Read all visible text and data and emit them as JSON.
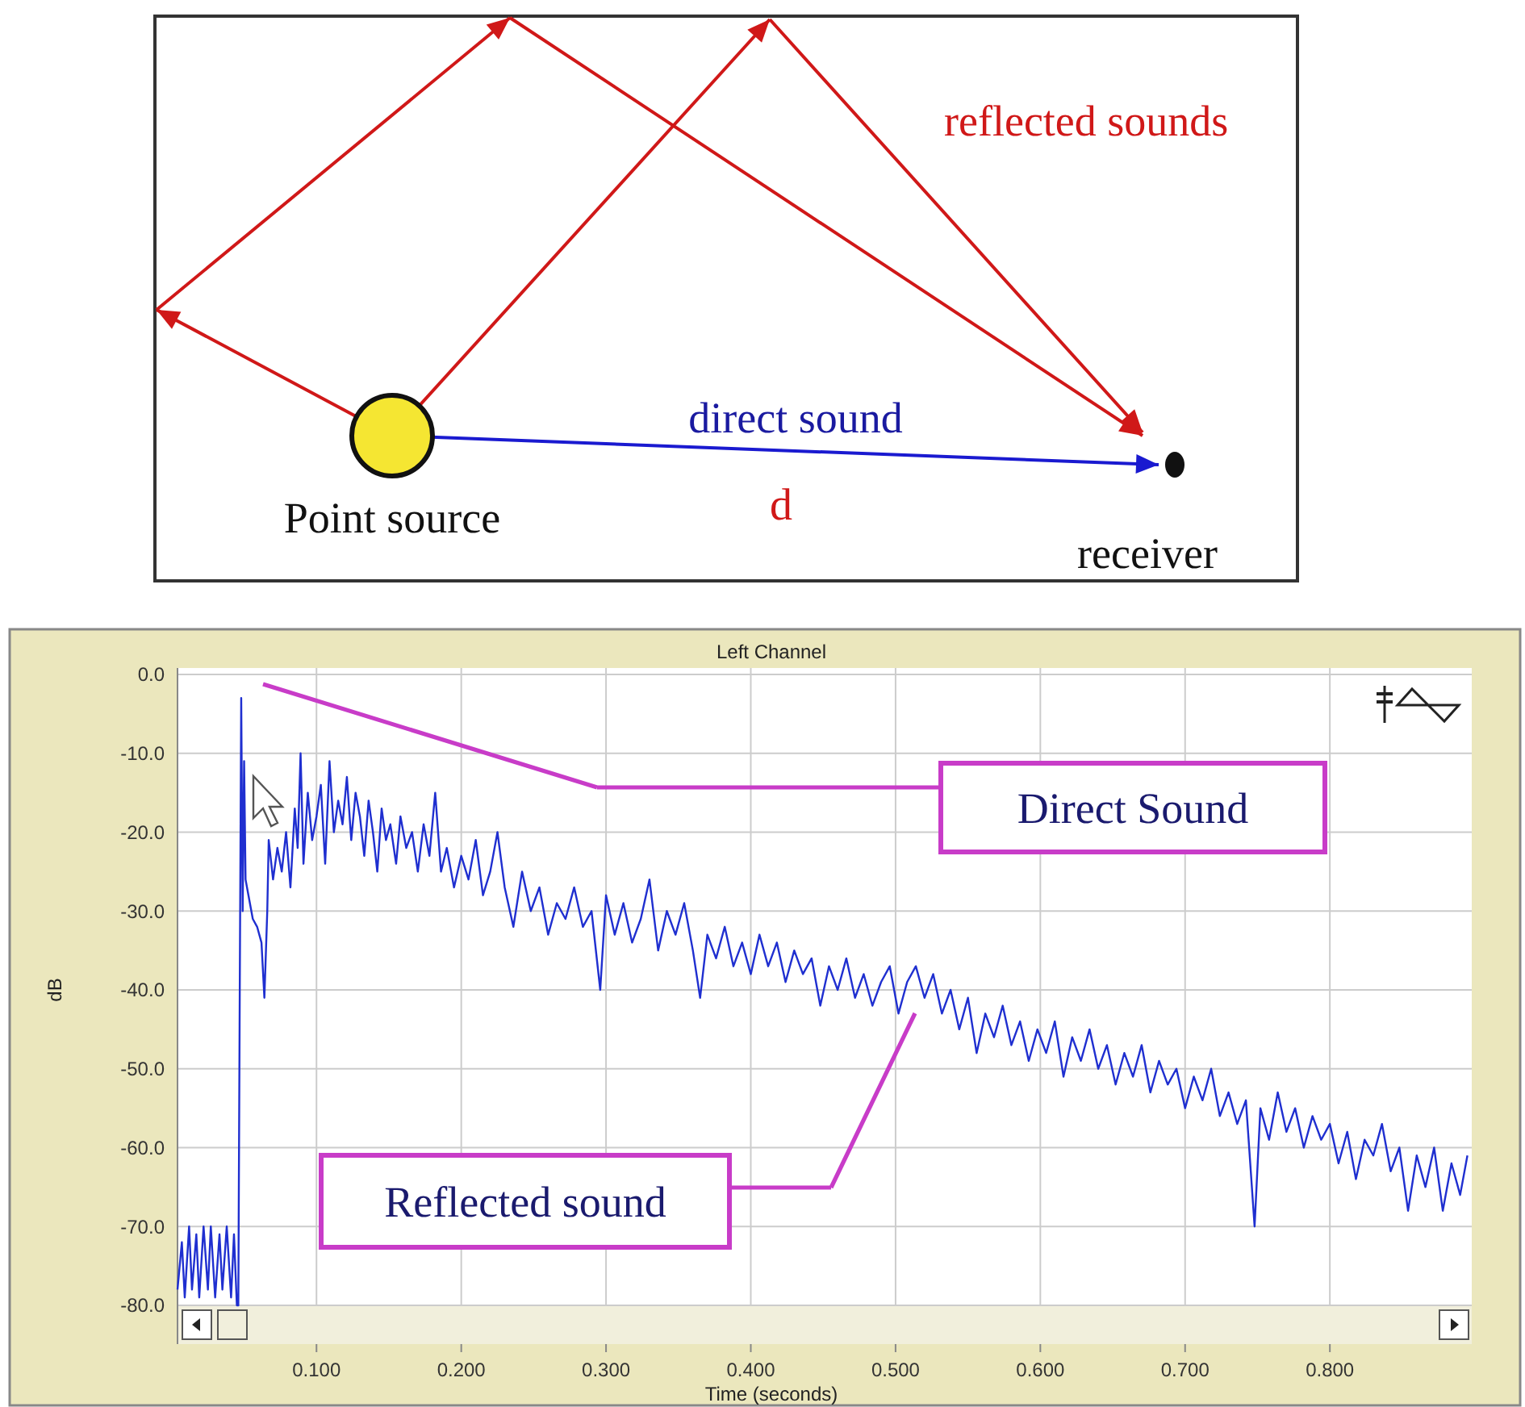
{
  "chart_data": [
    {
      "type": "other",
      "annotations": [
        "reflected sounds",
        "direct sound",
        "d",
        "Point source",
        "receiver"
      ]
    },
    {
      "type": "line",
      "title": "Left Channel",
      "xlabel": "Time (seconds)",
      "ylabel": "dB",
      "xlim": [
        0.004,
        0.898
      ],
      "ylim": [
        -80,
        0
      ],
      "xticks": [
        {
          "value": 0.1,
          "label": "0.100"
        },
        {
          "value": 0.2,
          "label": "0.200"
        },
        {
          "value": 0.3,
          "label": "0.300"
        },
        {
          "value": 0.4,
          "label": "0.400"
        },
        {
          "value": 0.5,
          "label": "0.500"
        },
        {
          "value": 0.6,
          "label": "0.600"
        },
        {
          "value": 0.7,
          "label": "0.700"
        },
        {
          "value": 0.8,
          "label": "0.800"
        }
      ],
      "yticks": [
        {
          "value": 0,
          "label": "0.0"
        },
        {
          "value": -10,
          "label": "-10.0"
        },
        {
          "value": -20,
          "label": "-20.0"
        },
        {
          "value": -30,
          "label": "-30.0"
        },
        {
          "value": -40,
          "label": "-40.0"
        },
        {
          "value": -50,
          "label": "-50.0"
        },
        {
          "value": -60,
          "label": "-60.0"
        },
        {
          "value": -70,
          "label": "-70.0"
        },
        {
          "value": -80,
          "label": "-80.0"
        }
      ],
      "grid": true,
      "marker": "none",
      "line_style": "solid",
      "annotations": [
        "Direct Sound",
        "Reflected sound"
      ],
      "series": [
        {
          "color": "#1f2fd0",
          "x": [
            0.004,
            0.007,
            0.009,
            0.012,
            0.014,
            0.017,
            0.019,
            0.022,
            0.025,
            0.027,
            0.03,
            0.033,
            0.035,
            0.038,
            0.041,
            0.043,
            0.045,
            0.046,
            0.047,
            0.048,
            0.049,
            0.05,
            0.051,
            0.053,
            0.056,
            0.059,
            0.062,
            0.064,
            0.066,
            0.067,
            0.07,
            0.073,
            0.076,
            0.079,
            0.082,
            0.085,
            0.087,
            0.089,
            0.091,
            0.094,
            0.097,
            0.1,
            0.103,
            0.106,
            0.109,
            0.112,
            0.115,
            0.118,
            0.121,
            0.124,
            0.127,
            0.13,
            0.133,
            0.136,
            0.139,
            0.142,
            0.145,
            0.148,
            0.151,
            0.155,
            0.158,
            0.162,
            0.166,
            0.17,
            0.174,
            0.178,
            0.182,
            0.186,
            0.19,
            0.195,
            0.2,
            0.205,
            0.21,
            0.215,
            0.22,
            0.225,
            0.23,
            0.236,
            0.242,
            0.248,
            0.254,
            0.26,
            0.266,
            0.272,
            0.278,
            0.284,
            0.29,
            0.296,
            0.3,
            0.306,
            0.312,
            0.318,
            0.324,
            0.33,
            0.336,
            0.342,
            0.348,
            0.354,
            0.36,
            0.365,
            0.37,
            0.376,
            0.382,
            0.388,
            0.394,
            0.4,
            0.406,
            0.412,
            0.418,
            0.424,
            0.43,
            0.436,
            0.442,
            0.448,
            0.454,
            0.46,
            0.466,
            0.472,
            0.478,
            0.484,
            0.49,
            0.496,
            0.502,
            0.508,
            0.514,
            0.52,
            0.526,
            0.532,
            0.538,
            0.544,
            0.55,
            0.556,
            0.562,
            0.568,
            0.574,
            0.58,
            0.586,
            0.592,
            0.598,
            0.604,
            0.61,
            0.616,
            0.622,
            0.628,
            0.634,
            0.64,
            0.646,
            0.652,
            0.658,
            0.664,
            0.67,
            0.676,
            0.682,
            0.688,
            0.694,
            0.7,
            0.706,
            0.712,
            0.718,
            0.724,
            0.73,
            0.736,
            0.742,
            0.748,
            0.752,
            0.758,
            0.764,
            0.77,
            0.776,
            0.782,
            0.788,
            0.794,
            0.8,
            0.806,
            0.812,
            0.818,
            0.824,
            0.83,
            0.836,
            0.842,
            0.848,
            0.854,
            0.86,
            0.866,
            0.872,
            0.878,
            0.884,
            0.89,
            0.895
          ],
          "values": [
            -78,
            -72,
            -79,
            -70,
            -78,
            -71,
            -79,
            -70,
            -78,
            -70,
            -79,
            -71,
            -78,
            -70,
            -79,
            -71,
            -80,
            -80,
            -40,
            -3,
            -30,
            -11,
            -26,
            -28,
            -31,
            -32,
            -34,
            -41,
            -30,
            -21,
            -26,
            -22,
            -25,
            -20,
            -27,
            -17,
            -22,
            -10,
            -24,
            -15,
            -21,
            -18,
            -14,
            -24,
            -11,
            -20,
            -16,
            -19,
            -13,
            -21,
            -15,
            -18,
            -23,
            -16,
            -20,
            -25,
            -17,
            -21,
            -19,
            -24,
            -18,
            -22,
            -20,
            -25,
            -19,
            -23,
            -15,
            -25,
            -22,
            -27,
            -23,
            -26,
            -21,
            -28,
            -25,
            -20,
            -27,
            -32,
            -25,
            -30,
            -27,
            -33,
            -29,
            -31,
            -27,
            -32,
            -30,
            -40,
            -28,
            -33,
            -29,
            -34,
            -31,
            -26,
            -35,
            -30,
            -33,
            -29,
            -35,
            -41,
            -33,
            -36,
            -32,
            -37,
            -34,
            -38,
            -33,
            -37,
            -34,
            -39,
            -35,
            -38,
            -36,
            -42,
            -37,
            -40,
            -36,
            -41,
            -38,
            -42,
            -39,
            -37,
            -43,
            -39,
            -37,
            -41,
            -38,
            -43,
            -40,
            -45,
            -41,
            -48,
            -43,
            -46,
            -42,
            -47,
            -44,
            -49,
            -45,
            -48,
            -44,
            -51,
            -46,
            -49,
            -45,
            -50,
            -47,
            -52,
            -48,
            -51,
            -47,
            -53,
            -49,
            -52,
            -50,
            -55,
            -51,
            -54,
            -50,
            -56,
            -53,
            -57,
            -54,
            -70,
            -55,
            -59,
            -53,
            -58,
            -55,
            -60,
            -56,
            -59,
            -57,
            -62,
            -58,
            -64,
            -59,
            -61,
            -57,
            -63,
            -60,
            -68,
            -61,
            -65,
            -60,
            -68,
            -62,
            -66,
            -61
          ]
        }
      ]
    }
  ]
}
